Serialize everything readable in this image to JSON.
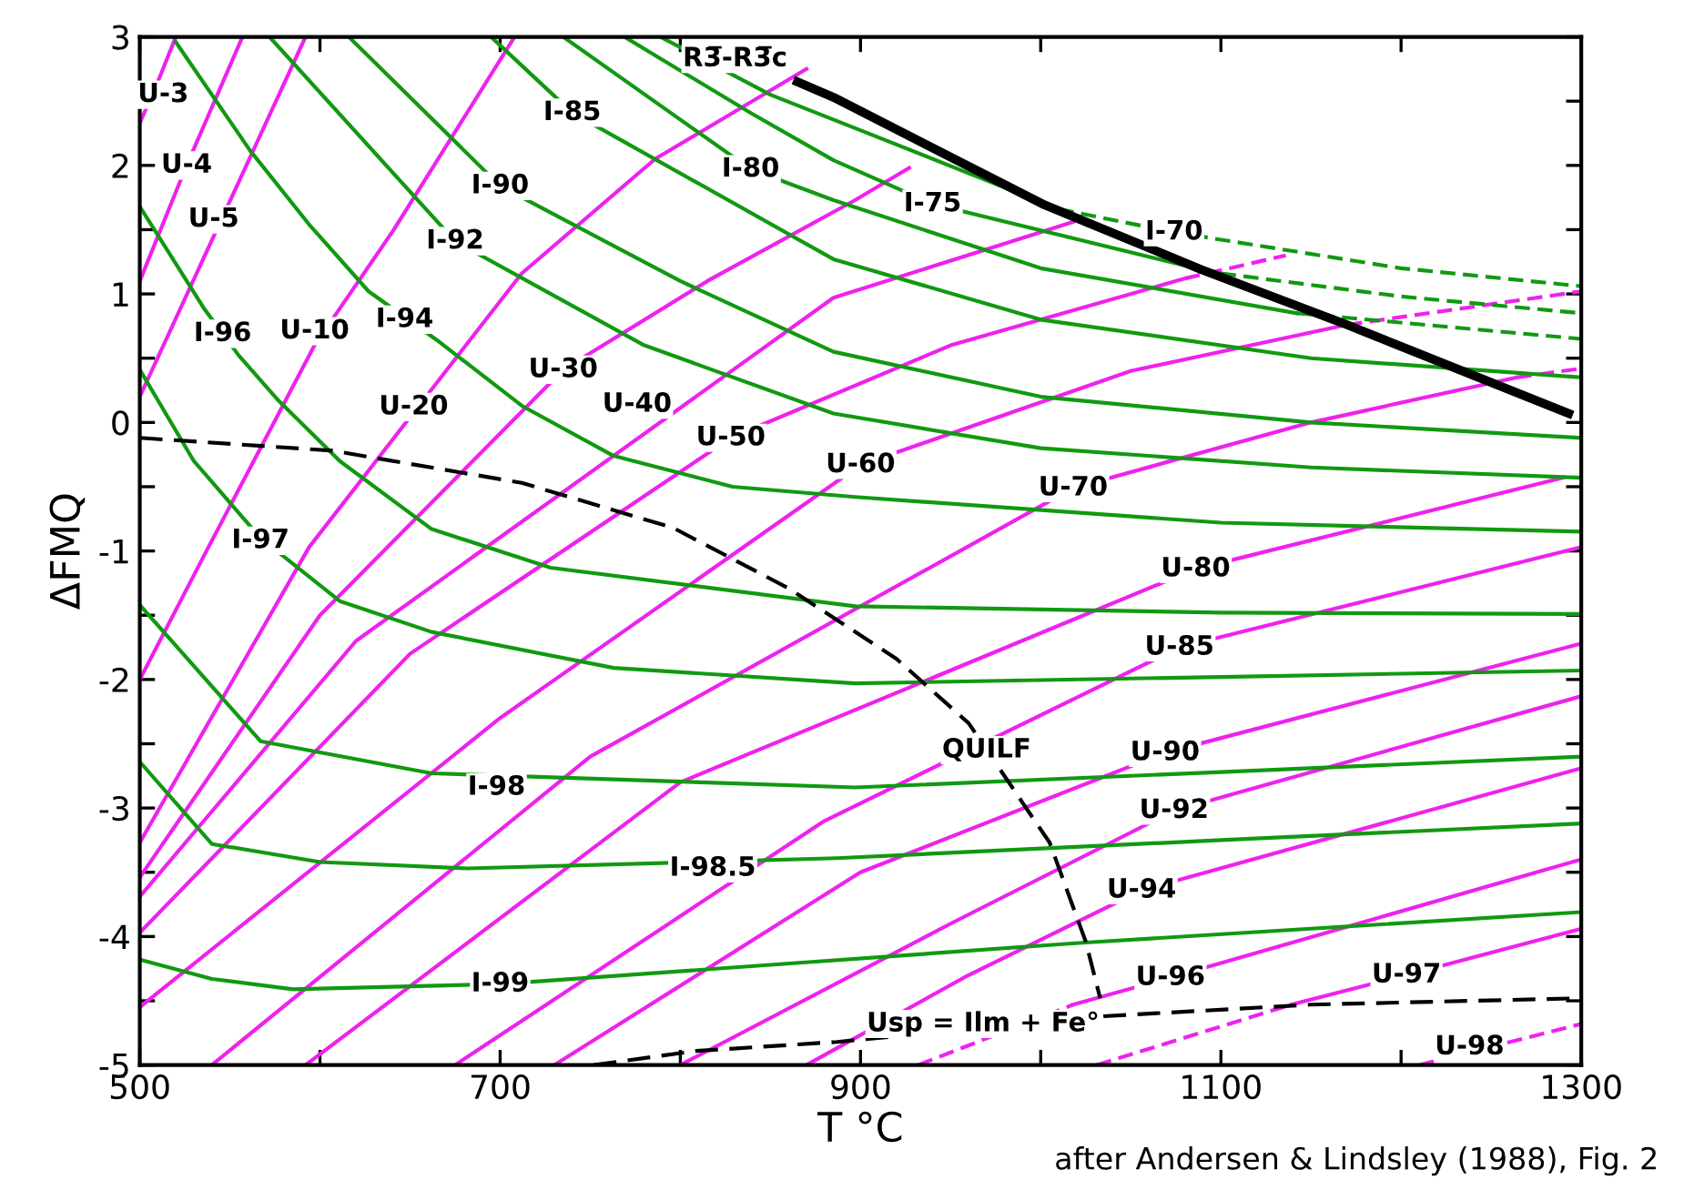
{
  "chart_data": {
    "type": "line",
    "xlabel": "T °C",
    "ylabel": "ΔFMQ",
    "xlim": [
      500,
      1300
    ],
    "ylim": [
      -5,
      3
    ],
    "xticks": [
      500,
      {
        "value": 600,
        "label": null
      },
      700,
      {
        "value": 800,
        "label": null
      },
      900,
      {
        "value": 1000,
        "label": null
      },
      1100,
      {
        "value": 1200,
        "label": null
      },
      1300
    ],
    "yticks": [
      -5,
      {
        "value": -4.5,
        "label": null
      },
      -4,
      {
        "value": -3.5,
        "label": null
      },
      -3,
      {
        "value": -2.5,
        "label": null
      },
      -2,
      {
        "value": -1.5,
        "label": null
      },
      -1,
      {
        "value": -0.5,
        "label": null
      },
      0,
      {
        "value": 0.5,
        "label": null
      },
      1,
      {
        "value": 1.5,
        "label": null
      },
      2,
      {
        "value": 2.5,
        "label": null
      },
      3
    ],
    "grid": false,
    "legend": false,
    "marker": "none",
    "series": [
      {
        "color": "#ee22ee",
        "line_style": "solid",
        "x": [
          500,
          510,
          520
        ],
        "values": [
          2.33,
          2.65,
          3
        ]
      },
      {
        "color": "#ee22ee",
        "line_style": "solid",
        "x": [
          500,
          526,
          557
        ],
        "values": [
          1.1,
          2.0,
          3
        ]
      },
      {
        "color": "#ee22ee",
        "line_style": "solid",
        "x": [
          500,
          592
        ],
        "values": [
          0.2,
          3
        ]
      },
      {
        "color": "#ee22ee",
        "line_style": "solid",
        "x": [
          500,
          537,
          597,
          641,
          708
        ],
        "values": [
          -2.0,
          -1.0,
          0.6,
          1.5,
          3
        ]
      },
      {
        "color": "#ee22ee",
        "line_style": "solid",
        "x": [
          500,
          594,
          712,
          786,
          870
        ],
        "values": [
          -3.27,
          -0.97,
          1.16,
          2.05,
          2.75
        ]
      },
      {
        "color": "#ee22ee",
        "line_style": "solid",
        "x": [
          500,
          600,
          735,
          815,
          897,
          927
        ],
        "values": [
          -3.54,
          -1.5,
          0.41,
          1.1,
          1.73,
          1.98
        ]
      },
      {
        "color": "#ee22ee",
        "line_style": "solid",
        "x": [
          500,
          620,
          885,
          1018
        ],
        "values": [
          -3.69,
          -1.7,
          0.97,
          1.56
        ]
      },
      {
        "color": "#ee22ee",
        "line_style": "solid",
        "x": [
          500,
          650,
          828,
          950,
          1080
        ],
        "values": [
          -3.97,
          -1.8,
          -0.12,
          0.6,
          1.12
        ]
      },
      {
        "color": "#ee22ee",
        "line_style": "dashed",
        "x": [
          1080,
          1136
        ],
        "values": [
          1.12,
          1.3
        ]
      },
      {
        "color": "#ee22ee",
        "line_style": "solid",
        "x": [
          500,
          700,
          900,
          1050,
          1170
        ],
        "values": [
          -4.55,
          -2.3,
          -0.33,
          0.4,
          0.76
        ]
      },
      {
        "color": "#ee22ee",
        "line_style": "dashed",
        "x": [
          1170,
          1300
        ],
        "values": [
          0.76,
          1.02
        ]
      },
      {
        "color": "#ee22ee",
        "line_style": "solid",
        "x": [
          540,
          750,
          1018,
          1150,
          1264
        ],
        "values": [
          -5,
          -2.6,
          -0.51,
          0.0,
          0.35
        ]
      },
      {
        "color": "#ee22ee",
        "line_style": "dashed",
        "x": [
          1264,
          1300
        ],
        "values": [
          0.35,
          0.42
        ]
      },
      {
        "color": "#ee22ee",
        "line_style": "solid",
        "x": [
          592,
          800,
          1086,
          1290
        ],
        "values": [
          -5,
          -2.8,
          -1.14,
          -0.43
        ]
      },
      {
        "color": "#ee22ee",
        "line_style": "solid",
        "x": [
          675,
          880,
          1077,
          1300
        ],
        "values": [
          -5,
          -3.1,
          -1.75,
          -0.97
        ]
      },
      {
        "color": "#ee22ee",
        "line_style": "solid",
        "x": [
          730,
          900,
          1069,
          1300
        ],
        "values": [
          -5,
          -3.5,
          -2.57,
          -1.72
        ]
      },
      {
        "color": "#ee22ee",
        "line_style": "solid",
        "x": [
          800,
          950,
          1074,
          1300
        ],
        "values": [
          -5,
          -3.9,
          -3.02,
          -2.13
        ]
      },
      {
        "color": "#ee22ee",
        "line_style": "solid",
        "x": [
          870,
          960,
          1056,
          1300
        ],
        "values": [
          -5,
          -4.3,
          -3.64,
          -2.69
        ]
      },
      {
        "color": "#ee22ee",
        "line_style": "dashed",
        "x": [
          932,
          1018
        ],
        "values": [
          -5,
          -4.53
        ]
      },
      {
        "color": "#ee22ee",
        "line_style": "solid",
        "x": [
          1018,
          1072,
          1300
        ],
        "values": [
          -4.53,
          -4.32,
          -3.4
        ]
      },
      {
        "color": "#ee22ee",
        "line_style": "dashed",
        "x": [
          1031,
          1139
        ],
        "values": [
          -5,
          -4.53
        ]
      },
      {
        "color": "#ee22ee",
        "line_style": "solid",
        "x": [
          1139,
          1203,
          1300
        ],
        "values": [
          -4.53,
          -4.3,
          -3.94
        ]
      },
      {
        "color": "#ee22ee",
        "line_style": "dashed",
        "x": [
          1210,
          1300
        ],
        "values": [
          -5,
          -4.68
        ]
      },
      {
        "color": "#119911",
        "line_style": "solid",
        "x": [
          789,
          850,
          897,
          1010
        ],
        "values": [
          3,
          2.55,
          2.29,
          1.66
        ]
      },
      {
        "color": "#119911",
        "line_style": "dashed",
        "x": [
          1010,
          1074,
          1200,
          1300
        ],
        "values": [
          1.66,
          1.48,
          1.2,
          1.06
        ]
      },
      {
        "color": "#119911",
        "line_style": "solid",
        "x": [
          769,
          840,
          885,
          940,
          1089
        ],
        "values": [
          3,
          2.4,
          2.04,
          1.7,
          1.19
        ]
      },
      {
        "color": "#119911",
        "line_style": "dashed",
        "x": [
          1100,
          1200,
          1300
        ],
        "values": [
          1.16,
          0.98,
          0.85
        ]
      },
      {
        "color": "#119911",
        "line_style": "solid",
        "x": [
          735,
          839,
          885,
          1000,
          1142
        ],
        "values": [
          3,
          1.97,
          1.73,
          1.2,
          0.85
        ]
      },
      {
        "color": "#119911",
        "line_style": "dashed",
        "x": [
          1142,
          1300
        ],
        "values": [
          0.85,
          0.65
        ]
      },
      {
        "color": "#119911",
        "line_style": "solid",
        "x": [
          695,
          740,
          885,
          1000,
          1150,
          1300
        ],
        "values": [
          3,
          2.41,
          1.27,
          0.8,
          0.5,
          0.35
        ]
      },
      {
        "color": "#119911",
        "line_style": "solid",
        "x": [
          616,
          700,
          800,
          885,
          1000,
          1150,
          1300
        ],
        "values": [
          3,
          1.84,
          1.1,
          0.55,
          0.2,
          0.0,
          -0.12
        ]
      },
      {
        "color": "#119911",
        "line_style": "solid",
        "x": [
          572,
          675,
          780,
          885,
          1000,
          1150,
          1300
        ],
        "values": [
          3,
          1.41,
          0.6,
          0.07,
          -0.2,
          -0.35,
          -0.43
        ]
      },
      {
        "color": "#119911",
        "line_style": "solid",
        "x": [
          520,
          561,
          594,
          627,
          665,
          712,
          763,
          829,
          897,
          1100,
          1300
        ],
        "values": [
          2.96,
          2.12,
          1.54,
          1.02,
          0.64,
          0.13,
          -0.26,
          -0.5,
          -0.58,
          -0.78,
          -0.85
        ]
      },
      {
        "color": "#119911",
        "line_style": "solid",
        "x": [
          500,
          536,
          555,
          577,
          611,
          662,
          728,
          897,
          1100,
          1300
        ],
        "values": [
          1.68,
          0.88,
          0.52,
          0.17,
          -0.3,
          -0.83,
          -1.13,
          -1.43,
          -1.48,
          -1.49
        ]
      },
      {
        "color": "#119911",
        "line_style": "solid",
        "x": [
          500,
          530,
          567,
          611,
          662,
          763,
          897,
          1100,
          1300
        ],
        "values": [
          0.41,
          -0.3,
          -0.9,
          -1.39,
          -1.63,
          -1.91,
          -2.03,
          -1.98,
          -1.93
        ]
      },
      {
        "color": "#119911",
        "line_style": "solid",
        "x": [
          500,
          567,
          662,
          897,
          1100,
          1300
        ],
        "values": [
          -1.42,
          -2.48,
          -2.73,
          -2.84,
          -2.72,
          -2.6
        ]
      },
      {
        "color": "#119911",
        "line_style": "solid",
        "x": [
          500,
          540,
          600,
          682,
          887,
          1100,
          1300
        ],
        "values": [
          -2.64,
          -3.28,
          -3.42,
          -3.47,
          -3.39,
          -3.25,
          -3.12
        ]
      },
      {
        "color": "#119911",
        "line_style": "solid",
        "x": [
          500,
          540,
          585,
          700,
          850,
          1021,
          1300
        ],
        "values": [
          -4.18,
          -4.33,
          -4.41,
          -4.37,
          -4.22,
          -4.05,
          -3.81
        ]
      },
      {
        "color": "#000000",
        "line_style": "solid",
        "x": [
          865,
          885,
          1001,
          1089,
          1170,
          1293
        ],
        "values": [
          2.65,
          2.53,
          1.7,
          1.19,
          0.76,
          0.07
        ]
      },
      {
        "color": "#000000",
        "line_style": "dashed",
        "x": [
          500,
          607,
          712,
          796,
          860,
          920,
          960,
          1005,
          1025,
          1033
        ],
        "values": [
          -0.12,
          -0.22,
          -0.47,
          -0.82,
          -1.29,
          -1.84,
          -2.34,
          -3.27,
          -4.04,
          -4.48
        ]
      },
      {
        "color": "#000000",
        "line_style": "dashed",
        "x": [
          752,
          809,
          887,
          1035,
          1150,
          1300
        ],
        "values": [
          -5,
          -4.89,
          -4.82,
          -4.62,
          -4.53,
          -4.48
        ]
      }
    ],
    "annotations": [
      {
        "text": "U-3",
        "x": 513,
        "y": 2.55
      },
      {
        "text": "U-4",
        "x": 526,
        "y": 2.0
      },
      {
        "text": "U-5",
        "x": 541,
        "y": 1.58
      },
      {
        "text": "U-10",
        "x": 597,
        "y": 0.71
      },
      {
        "text": "U-20",
        "x": 652,
        "y": 0.12
      },
      {
        "text": "U-30",
        "x": 735,
        "y": 0.41
      },
      {
        "text": "U-40",
        "x": 776,
        "y": 0.14
      },
      {
        "text": "U-50",
        "x": 828,
        "y": -0.12
      },
      {
        "text": "U-60",
        "x": 900,
        "y": -0.33
      },
      {
        "text": "U-70",
        "x": 1018,
        "y": -0.51
      },
      {
        "text": "U-80",
        "x": 1086,
        "y": -1.14
      },
      {
        "text": "U-85",
        "x": 1077,
        "y": -1.75
      },
      {
        "text": "U-90",
        "x": 1069,
        "y": -2.57
      },
      {
        "text": "U-92",
        "x": 1074,
        "y": -3.02
      },
      {
        "text": "U-94",
        "x": 1056,
        "y": -3.64
      },
      {
        "text": "U-96",
        "x": 1072,
        "y": -4.32
      },
      {
        "text": "U-97",
        "x": 1203,
        "y": -4.3
      },
      {
        "text": "U-98",
        "x": 1238,
        "y": -4.86
      },
      {
        "text": "I-70",
        "x": 1074,
        "y": 1.48
      },
      {
        "text": "I-75",
        "x": 940,
        "y": 1.7
      },
      {
        "text": "I-80",
        "x": 839,
        "y": 1.97
      },
      {
        "text": "I-85",
        "x": 740,
        "y": 2.41
      },
      {
        "text": "I-90",
        "x": 700,
        "y": 1.84
      },
      {
        "text": "I-92",
        "x": 675,
        "y": 1.41
      },
      {
        "text": "I-94",
        "x": 647,
        "y": 0.8
      },
      {
        "text": "I-96",
        "x": 546,
        "y": 0.69
      },
      {
        "text": "I-97",
        "x": 567,
        "y": -0.92
      },
      {
        "text": "I-98",
        "x": 698,
        "y": -2.84
      },
      {
        "text": "I-98.5",
        "x": 818,
        "y": -3.47
      },
      {
        "text": "I-99",
        "x": 700,
        "y": -4.37
      },
      "R3̅-R3̅c",
      {
        "text": "QUILF",
        "x": 970,
        "y": -2.55
      },
      {
        "text": "Usp = Ilm + Fe°",
        "x": 968,
        "y": -4.68
      },
      "after Andersen & Lindsley (1988), Fig. 2"
    ]
  }
}
